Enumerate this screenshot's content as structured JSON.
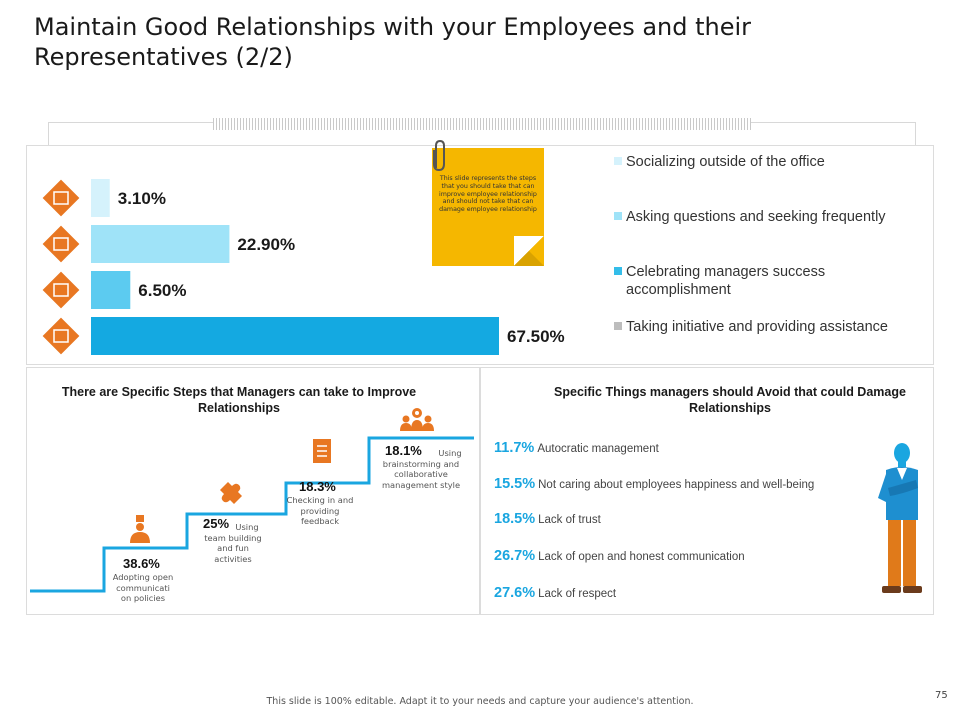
{
  "title": "Maintain Good Relationships with your Employees and their Representatives (2/2)",
  "note": "This slide represents the steps that you should take that can improve employee relationship and should not take that can damage employee relationship",
  "chart_data": {
    "type": "bar",
    "orientation": "horizontal",
    "categories": [
      "Socializing outside of the office",
      "Asking questions and seeking frequently",
      "Celebrating managers success accomplishment",
      "Taking initiative and providing assistance"
    ],
    "values": [
      3.1,
      22.9,
      6.5,
      67.5
    ],
    "value_labels": [
      "3.10%",
      "22.90%",
      "6.50%",
      "67.50%"
    ],
    "colors": [
      "#d5f2fc",
      "#9fe3f8",
      "#5ccbf0",
      "#14a9e1"
    ],
    "legend_colors": [
      "#d5f2fc",
      "#9fe3f8",
      "#33bde9",
      "#bdbdbd"
    ],
    "icons": [
      "mail-hand-icon",
      "document-checklist-icon",
      "factory-hand-icon",
      "people-handshake-icon"
    ],
    "xlim": [
      0,
      67.5
    ],
    "legend": "right"
  },
  "steps_title": "There are Specific Steps that Managers can take to Improve Relationships",
  "steps": [
    {
      "pct": "38.6%",
      "desc": "Adopting open communicati on policies",
      "icon": "presenter-icon"
    },
    {
      "pct": "25%",
      "desc": "Using team building and fun activities",
      "icon": "puzzle-icon"
    },
    {
      "pct": "18.3%",
      "desc": "Checking in and providing feedback",
      "icon": "clipboard-icon"
    },
    {
      "pct": "18.1%",
      "desc": "Using brainstorming and collaborative management style",
      "icon": "team-gear-icon"
    }
  ],
  "avoid_title": "Specific Things managers should Avoid that could Damage Relationships",
  "avoid": [
    {
      "pct": "11.7%",
      "text": "Autocratic management"
    },
    {
      "pct": "15.5%",
      "text": "Not caring about employees happiness and well-being"
    },
    {
      "pct": "18.5%",
      "text": "Lack of trust"
    },
    {
      "pct": "26.7%",
      "text": "Lack of open and honest communication"
    },
    {
      "pct": "27.6%",
      "text": "Lack of respect"
    }
  ],
  "footer": "This slide is 100% editable. Adapt it to your needs and capture your audience's attention.",
  "page_number": "75",
  "colors": {
    "accent_blue": "#1aa6e0",
    "icon_orange": "#e87722",
    "note_yellow": "#f5b700"
  }
}
